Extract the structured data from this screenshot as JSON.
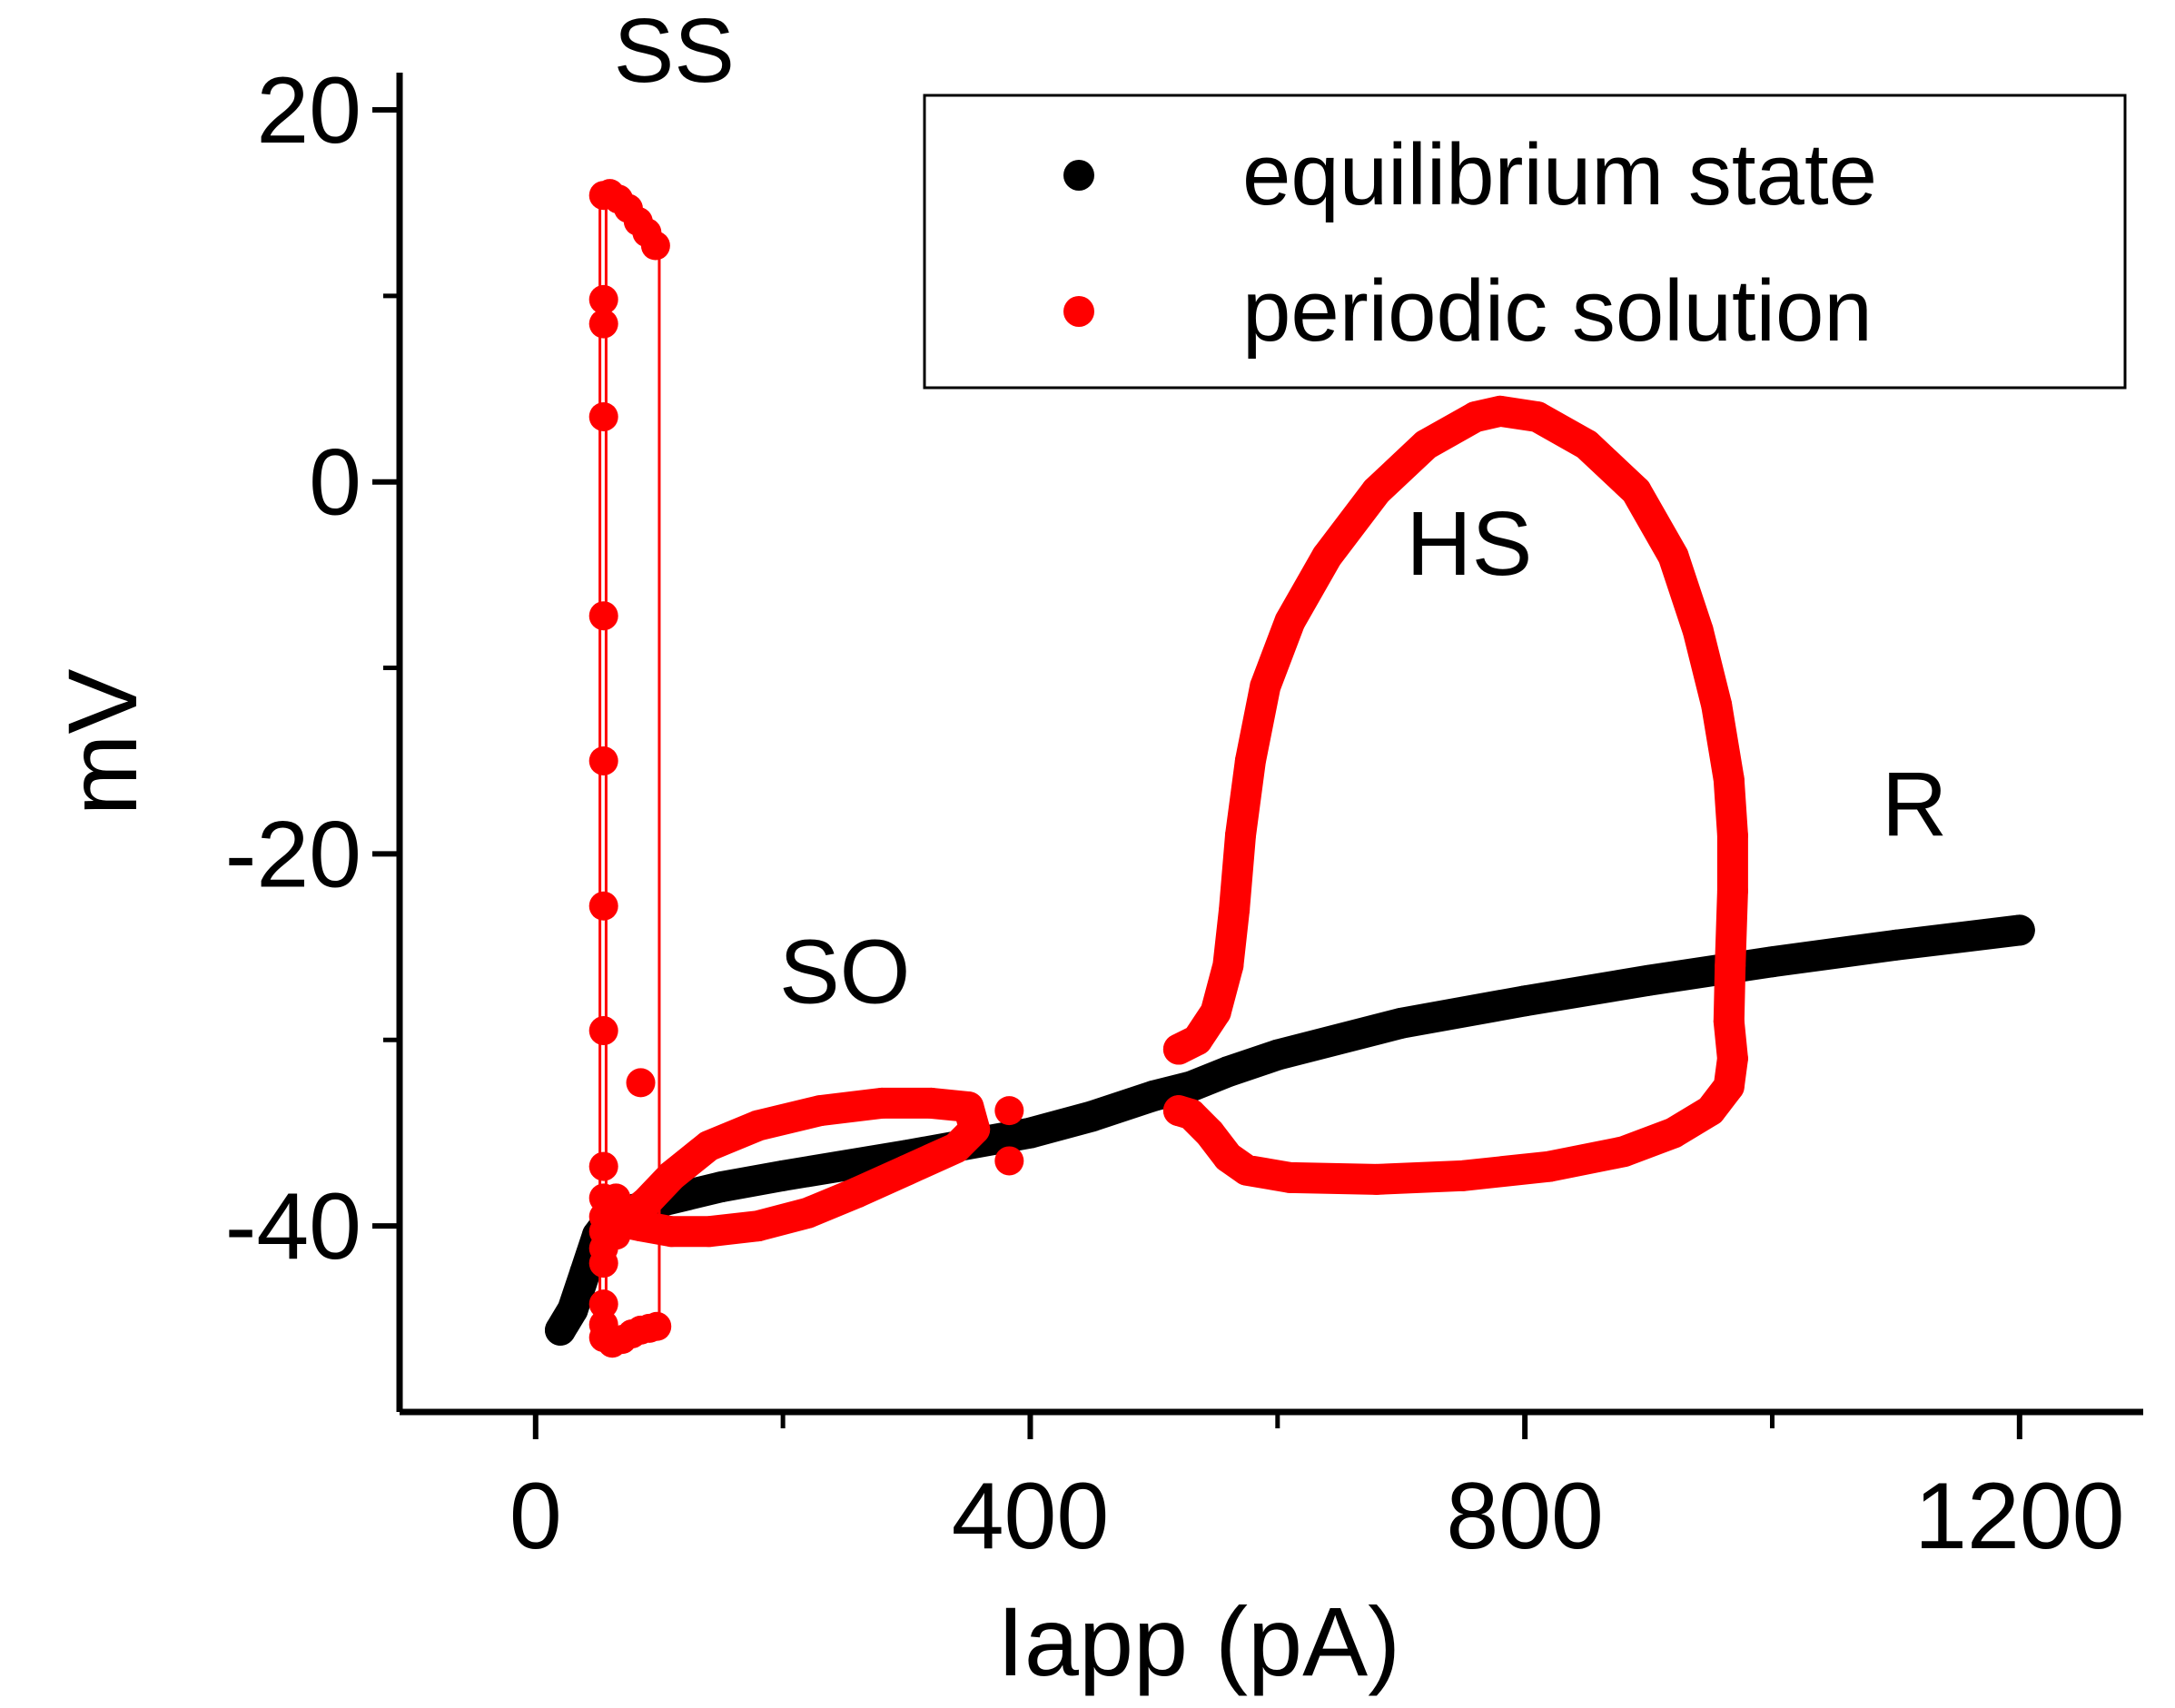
{
  "chart_data": {
    "type": "scatter",
    "title": "",
    "xlabel": "Iapp (pA)",
    "ylabel": "mV",
    "xlim": [
      -110,
      1300
    ],
    "ylim": [
      -50,
      22
    ],
    "xticks": [
      0,
      400,
      800,
      1200
    ],
    "xtick_labels": [
      "0",
      "400",
      "800",
      "1200"
    ],
    "yticks": [
      -40,
      -20,
      0,
      20
    ],
    "ytick_labels": [
      "-40",
      "-20",
      "0",
      "20"
    ],
    "grid": false,
    "legend": {
      "position": "top-right",
      "entries": [
        {
          "label": "equilibrium state",
          "color": "#000000"
        },
        {
          "label": "periodic solution",
          "color": "#ff0000"
        }
      ]
    },
    "annotations": [
      {
        "text": "SS",
        "x": 112,
        "y": 21.5
      },
      {
        "text": "SO",
        "x": 250,
        "y": -28
      },
      {
        "text": "HS",
        "x": 755,
        "y": -5
      },
      {
        "text": "R",
        "x": 1115,
        "y": -19
      }
    ],
    "series": [
      {
        "name": "equilibrium state",
        "color": "#000000",
        "style": "dense",
        "points": [
          [
            20,
            -45.6
          ],
          [
            30,
            -44.5
          ],
          [
            40,
            -42.5
          ],
          [
            50,
            -40.5
          ],
          [
            60,
            -39.6
          ],
          [
            80,
            -39.1
          ],
          [
            100,
            -38.7
          ],
          [
            150,
            -37.9
          ],
          [
            200,
            -37.3
          ],
          [
            300,
            -36.2
          ],
          [
            400,
            -35.0
          ],
          [
            450,
            -34.1
          ],
          [
            500,
            -33.0
          ],
          [
            530,
            -32.5
          ],
          [
            560,
            -31.7
          ],
          [
            600,
            -30.8
          ],
          [
            700,
            -29.1
          ],
          [
            800,
            -27.9
          ],
          [
            900,
            -26.8
          ],
          [
            1000,
            -25.8
          ],
          [
            1100,
            -24.9
          ],
          [
            1200,
            -24.1
          ]
        ]
      },
      {
        "name": "periodic solution (HS loop)",
        "color": "#ff0000",
        "style": "dense",
        "points": [
          [
            520,
            -30.5
          ],
          [
            535,
            -30.0
          ],
          [
            550,
            -28.5
          ],
          [
            560,
            -26.0
          ],
          [
            565,
            -23.0
          ],
          [
            570,
            -19.0
          ],
          [
            578,
            -15.0
          ],
          [
            590,
            -11.0
          ],
          [
            610,
            -7.5
          ],
          [
            640,
            -4.0
          ],
          [
            680,
            -0.5
          ],
          [
            720,
            2.0
          ],
          [
            760,
            3.5
          ],
          [
            780,
            3.8
          ],
          [
            810,
            3.5
          ],
          [
            850,
            2.0
          ],
          [
            890,
            -0.5
          ],
          [
            920,
            -4.0
          ],
          [
            940,
            -8.0
          ],
          [
            955,
            -12.0
          ],
          [
            965,
            -16.0
          ],
          [
            968,
            -19.0
          ],
          [
            968,
            -22.0
          ],
          [
            966,
            -26.0
          ],
          [
            965,
            -29.0
          ],
          [
            968,
            -31.0
          ],
          [
            965,
            -32.5
          ],
          [
            950,
            -33.8
          ],
          [
            920,
            -35.0
          ],
          [
            880,
            -36.0
          ],
          [
            820,
            -36.8
          ],
          [
            750,
            -37.3
          ],
          [
            680,
            -37.5
          ],
          [
            610,
            -37.4
          ],
          [
            575,
            -37.0
          ],
          [
            560,
            -36.3
          ],
          [
            545,
            -35.0
          ],
          [
            530,
            -34.0
          ],
          [
            520,
            -33.8
          ]
        ]
      },
      {
        "name": "periodic solution (SO loop)",
        "color": "#ff0000",
        "style": "dense",
        "points": [
          [
            70,
            -39.8
          ],
          [
            90,
            -38.7
          ],
          [
            110,
            -37.3
          ],
          [
            140,
            -35.7
          ],
          [
            180,
            -34.6
          ],
          [
            230,
            -33.8
          ],
          [
            280,
            -33.4
          ],
          [
            320,
            -33.4
          ],
          [
            350,
            -33.6
          ],
          [
            355,
            -34.8
          ],
          [
            340,
            -35.8
          ],
          [
            300,
            -37.0
          ],
          [
            260,
            -38.2
          ],
          [
            220,
            -39.3
          ],
          [
            180,
            -40.0
          ],
          [
            140,
            -40.3
          ],
          [
            110,
            -40.3
          ],
          [
            85,
            -40.0
          ],
          [
            70,
            -39.8
          ]
        ]
      },
      {
        "name": "periodic solution (SO points)",
        "color": "#ff0000",
        "style": "points",
        "points": [
          [
            383,
            -33.8
          ],
          [
            383,
            -36.5
          ]
        ]
      },
      {
        "name": "periodic solution (SS branch)",
        "color": "#ff0000",
        "style": "points",
        "points": [
          [
            55,
            15.4
          ],
          [
            60,
            15.5
          ],
          [
            67,
            15.2
          ],
          [
            75,
            14.7
          ],
          [
            83,
            14.0
          ],
          [
            90,
            13.4
          ],
          [
            97,
            12.7
          ],
          [
            55,
            9.8
          ],
          [
            55,
            8.5
          ],
          [
            55,
            3.5
          ],
          [
            55,
            -7.2
          ],
          [
            55,
            -15.0
          ],
          [
            55,
            -22.8
          ],
          [
            55,
            -29.5
          ],
          [
            55,
            -36.8
          ],
          [
            55,
            -38.5
          ],
          [
            55,
            -39.5
          ],
          [
            55,
            -40.3
          ],
          [
            55,
            -41.2
          ],
          [
            55,
            -42.0
          ],
          [
            55,
            -44.2
          ],
          [
            55,
            -45.3
          ],
          [
            55,
            -46.0
          ],
          [
            62,
            -46.3
          ],
          [
            70,
            -46.1
          ],
          [
            78,
            -45.8
          ],
          [
            85,
            -45.6
          ],
          [
            92,
            -45.5
          ],
          [
            98,
            -45.4
          ],
          [
            85,
            -32.3
          ],
          [
            65,
            -38.5
          ],
          [
            65,
            -40.5
          ]
        ]
      },
      {
        "name": "periodic solution (SS lines)",
        "color": "#ff0000",
        "style": "lines",
        "points": [
          [
            52,
            15.4
          ],
          [
            52,
            -46.3
          ],
          [
            57,
            15.4
          ],
          [
            57,
            -46.3
          ],
          [
            100,
            12.7
          ],
          [
            100,
            -45.4
          ]
        ]
      }
    ]
  }
}
